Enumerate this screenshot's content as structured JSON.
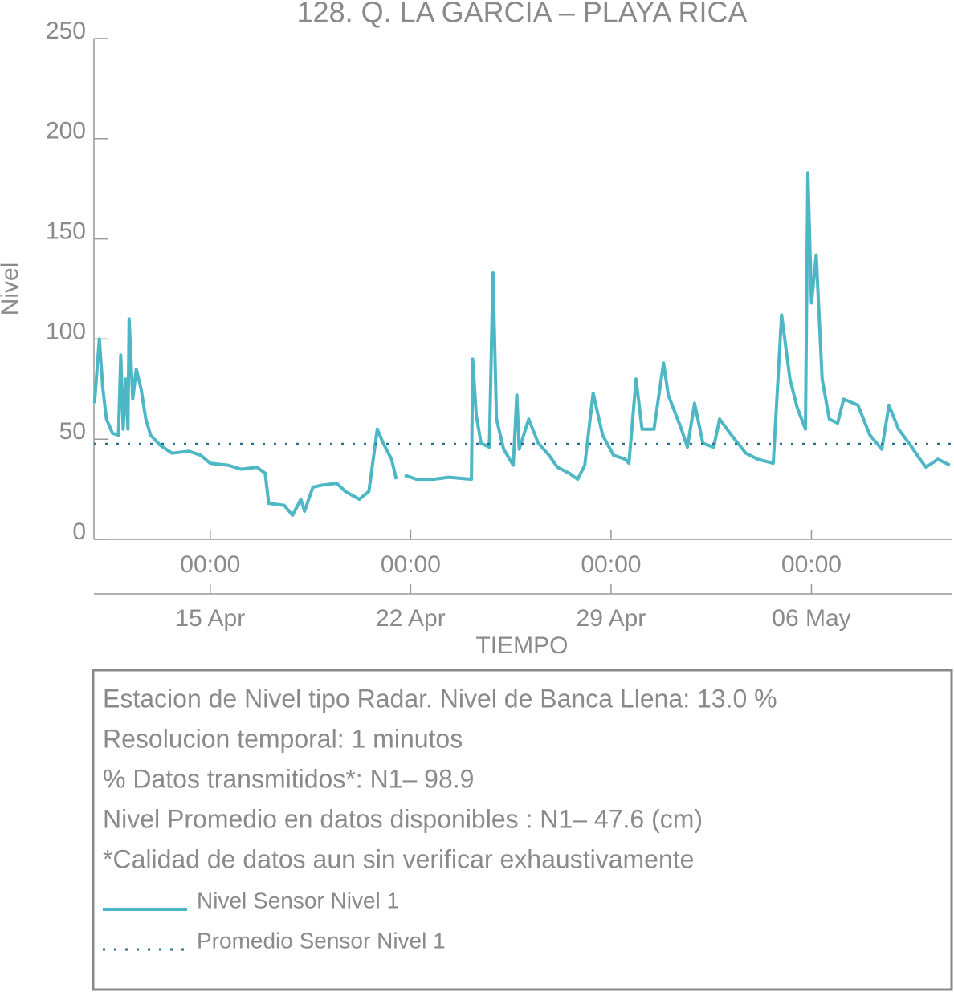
{
  "chart_data": {
    "type": "line",
    "title": "128. Q. LA GARCIA – PLAYA RICA",
    "x_label": "TIEMPO",
    "y_label": "Nivel",
    "xlim": [
      "04-10 22:30",
      "05-10 21:30"
    ],
    "ylim": [
      0,
      250
    ],
    "yticks": [
      0,
      50,
      100,
      150,
      200,
      250
    ],
    "xticks": [
      {
        "value": "04-15 00:00",
        "label": "00:00"
      },
      {
        "value": "04-22 00:00",
        "label": "00:00"
      },
      {
        "value": "04-29 00:00",
        "label": "00:00"
      },
      {
        "value": "05-06 00:00",
        "label": "00:00"
      }
    ],
    "xticks_dates": [
      {
        "value": "04-15 00:00",
        "label": "15 Apr"
      },
      {
        "value": "04-22 00:00",
        "label": "22 Apr"
      },
      {
        "value": "04-29 00:00",
        "label": "29 Apr"
      },
      {
        "value": "05-06 00:00",
        "label": "06 May"
      }
    ],
    "series": [
      {
        "name": "Nivel Sensor Nivel 1",
        "color": "#4db7c6",
        "x": [
          "04-10 23:00",
          "04-11 03:00",
          "04-11 06:00",
          "04-11 09:00",
          "04-11 14:00",
          "04-11 19:00",
          "04-11 21:00",
          "04-11 23:00",
          "04-12 01:00",
          "04-12 03:00",
          "04-12 04:00",
          "04-12 07:00",
          "04-12 10:00",
          "04-12 14:00",
          "04-12 18:00",
          "04-12 22:00",
          "04-13 06:00",
          "04-13 16:00",
          "04-14 06:00",
          "04-14 16:00",
          "04-15 00:00",
          "04-15 15:00",
          "04-16 02:00",
          "04-16 15:00",
          "04-16 22:00",
          "04-17 01:00",
          "04-17 14:00",
          "04-17 21:00",
          "04-18 04:00",
          "04-18 07:00",
          "04-18 14:00",
          "04-18 21:00",
          "04-19 10:00",
          "04-19 17:00",
          "04-20 05:00",
          "04-20 13:00",
          "04-20 20:00",
          "04-21 01:00",
          "04-21 08:00",
          "04-21 12:00",
          "04-21 15:00",
          "04-21 19:00",
          "04-22 05:00",
          "04-22 19:00",
          "04-23 08:00",
          "04-24 03:00",
          "04-24 04:00",
          "04-24 07:00",
          "04-24 11:00",
          "04-24 18:00",
          "04-24 21:00",
          "04-25 00:00",
          "04-25 06:00",
          "04-25 14:00",
          "04-25 17:00",
          "04-25 19:00",
          "04-26 03:00",
          "04-26 11:00",
          "04-26 20:00",
          "04-27 03:00",
          "04-27 13:00",
          "04-27 20:00",
          "04-28 02:00",
          "04-28 09:00",
          "04-28 17:00",
          "04-29 02:00",
          "04-29 12:00",
          "04-29 15:00",
          "04-29 21:00",
          "04-30 02:00",
          "04-30 12:00",
          "04-30 20:00",
          "05-01 00:00",
          "05-01 11:00",
          "05-01 16:00",
          "05-01 22:00",
          "05-02 05:00",
          "05-02 14:00",
          "05-02 19:00",
          "05-03 05:00",
          "05-03 17:00",
          "05-04 03:00",
          "05-04 16:00",
          "05-04 23:00",
          "05-05 06:00",
          "05-05 12:00",
          "05-05 19:00",
          "05-05 21:00",
          "05-06 00:00",
          "05-06 04:00",
          "05-06 09:00",
          "05-06 15:00",
          "05-06 22:00",
          "05-07 03:00",
          "05-07 15:00",
          "05-08 01:00",
          "05-08 11:00",
          "05-08 17:00",
          "05-09 01:00",
          "05-09 11:00",
          "05-09 19:00",
          "05-10 00:00",
          "05-10 10:00",
          "05-10 20:00"
        ],
        "values": [
          68,
          100,
          75,
          60,
          53,
          52,
          92,
          55,
          80,
          55,
          110,
          70,
          85,
          75,
          60,
          52,
          47,
          43,
          44,
          42,
          38,
          37,
          35,
          36,
          33,
          18,
          17,
          12,
          20,
          14,
          26,
          27,
          28,
          24,
          20,
          24,
          55,
          48,
          40,
          30,
          null,
          32,
          30,
          30,
          31,
          30,
          90,
          62,
          48,
          46,
          133,
          60,
          45,
          37,
          72,
          45,
          60,
          48,
          42,
          36,
          33,
          30,
          37,
          73,
          52,
          42,
          40,
          38,
          80,
          55,
          55,
          88,
          72,
          55,
          46,
          68,
          48,
          46,
          60,
          52,
          43,
          40,
          38,
          112,
          80,
          66,
          55,
          183,
          118,
          142,
          80,
          60,
          58,
          70,
          67,
          52,
          45,
          67,
          55,
          47,
          40,
          36,
          40,
          37
        ]
      },
      {
        "name": "Promedio Sensor Nivel 1",
        "color": "#2b6e8e",
        "dotted": true,
        "x": [
          "04-10 22:30",
          "05-10 21:30"
        ],
        "values": [
          47.6,
          47.6
        ]
      }
    ],
    "info_lines": [
      "Estacion de Nivel tipo Radar. Nivel de Banca Llena: 13.0 %",
      "Resolucion temporal: 1 minutos",
      "% Datos transmitidos*: N1– 98.9",
      "Nivel Promedio en datos disponibles : N1– 47.6 (cm)",
      "*Calidad de datos aun sin verificar exhaustivamente"
    ]
  }
}
